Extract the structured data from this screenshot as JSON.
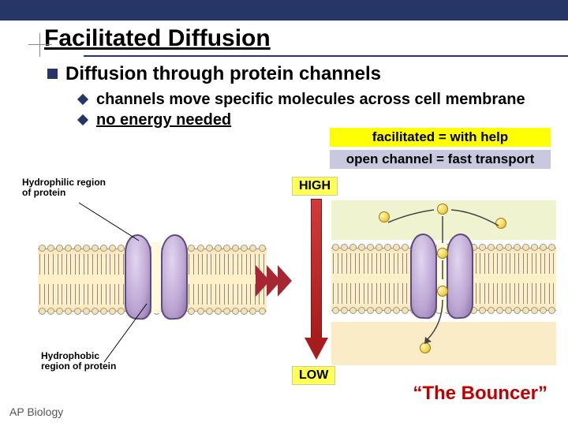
{
  "slide": {
    "title": "Facilitated Diffusion",
    "heading": "Diffusion through protein channels",
    "bullets": [
      "channels move specific molecules across cell membrane",
      "no energy needed"
    ],
    "labels": {
      "facilitated": "facilitated = with help",
      "open_channel": "open channel = fast transport",
      "high": "HIGH",
      "low": "LOW",
      "bouncer": "“The Bouncer”"
    },
    "figure_left": {
      "label1": "Hydrophilic region of protein",
      "label2": "Hydrophobic region of protein"
    },
    "footer": "AP Biology",
    "colors": {
      "navy": "#253667",
      "yellow_hilite": "#ffff00",
      "gray_hilite": "#c8c8de",
      "badge_bg": "#ffff55",
      "bouncer_text": "#c00000",
      "arrow_red": "#a71c1c",
      "channel_purple": "#bda6d3",
      "membrane_tan": "#fbe2b6"
    },
    "typography": {
      "title_pt": 30,
      "h2_pt": 24,
      "bullet_pt": 20,
      "label_pt": 17,
      "fig_label_pt": 12
    }
  }
}
